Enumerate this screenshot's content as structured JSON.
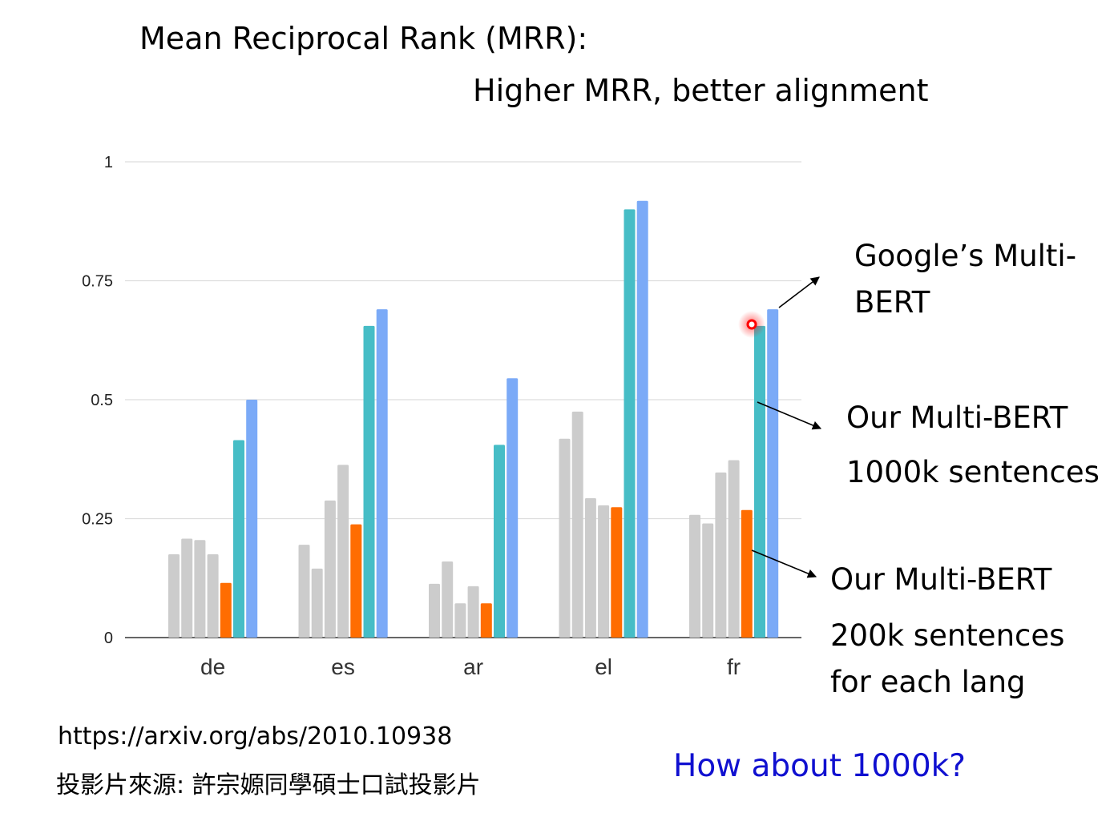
{
  "header": {
    "title": "Mean Reciprocal Rank (MRR):",
    "subtitle": "Higher MRR, better alignment"
  },
  "annotations": {
    "google_line1": "Google’s Multi-",
    "google_line2": "BERT",
    "our_1000k_line1": "Our Multi-BERT",
    "our_1000k_line2": "1000k sentences",
    "our_200k_line1": "Our Multi-BERT",
    "our_200k_line2": "200k sentences",
    "our_200k_line3": "for each lang"
  },
  "footer": {
    "url": "https://arxiv.org/abs/2010.10938",
    "source": "投影片來源: 許宗嫄同學碩士口試投影片",
    "question": "How about 1000k?"
  },
  "colors": {
    "gray": "#cccccc",
    "orange": "#ff6d01",
    "teal": "#46bdc6",
    "blue": "#7baaf7",
    "question_text": "#1010d0",
    "pointer_red": "#ff0000"
  },
  "chart_data": {
    "type": "bar",
    "title": "",
    "xlabel": "",
    "ylabel": "",
    "ylim": [
      0,
      1
    ],
    "yticks": [
      "0",
      "0.25",
      "0.5",
      "0.75",
      "1"
    ],
    "ytick_values": [
      0,
      0.25,
      0.5,
      0.75,
      1
    ],
    "grid": true,
    "categories": [
      "de",
      "es",
      "ar",
      "el",
      "fr"
    ],
    "series": [
      {
        "color": "#cccccc",
        "values": [
          0.175,
          0.195,
          0.113,
          0.418,
          0.258
        ]
      },
      {
        "color": "#cccccc",
        "values": [
          0.208,
          0.145,
          0.16,
          0.475,
          0.24
        ]
      },
      {
        "color": "#cccccc",
        "values": [
          0.205,
          0.288,
          0.072,
          0.293,
          0.347
        ]
      },
      {
        "color": "#cccccc",
        "values": [
          0.175,
          0.363,
          0.108,
          0.278,
          0.373
        ]
      },
      {
        "color": "#ff6d01",
        "values": [
          0.115,
          0.238,
          0.072,
          0.274,
          0.268
        ]
      },
      {
        "name": "Our Multi-BERT 1000k sentences",
        "color": "#46bdc6",
        "values": [
          0.415,
          0.655,
          0.405,
          0.9,
          0.655
        ]
      },
      {
        "name": "Google’s Multi-BERT",
        "color": "#7baaf7",
        "values": [
          0.5,
          0.69,
          0.545,
          0.918,
          0.69
        ]
      }
    ]
  }
}
